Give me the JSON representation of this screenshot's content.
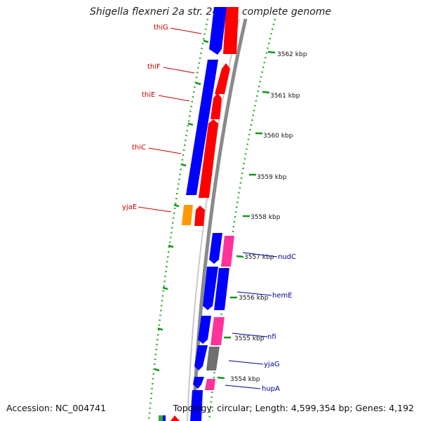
{
  "title": "Shigella flexneri 2a str. 2457T, complete genome",
  "accession": "Accession: NC_004741",
  "summary": "Topology: circular; Length: 4,599,354 bp; Genes: 4,192",
  "colors": {
    "forward_cds": "#ff0000",
    "reverse_cds": "#0000ff",
    "other_gene": "#ff3399",
    "orange_gene": "#ff9900",
    "gray_gene": "#707070",
    "backbone": "#8a8a8a",
    "tick_major": "#119911",
    "tick_minor": "#33aa33",
    "label_red": "#cc0000",
    "label_blue": "#000099"
  },
  "kbp_labels": [
    "3562 kbp",
    "3561 kbp",
    "3560 kbp",
    "3559 kbp",
    "3558 kbp",
    "3557 kbp",
    "3556 kbp",
    "3555 kbp",
    "3554 kbp"
  ],
  "genes_forward_labeled": [
    "thiG",
    "thiF",
    "thiE",
    "thiC",
    "yjaE"
  ],
  "genes_reverse_labeled": [
    "nudC",
    "hemE",
    "nfi",
    "yjaG",
    "hupA"
  ]
}
